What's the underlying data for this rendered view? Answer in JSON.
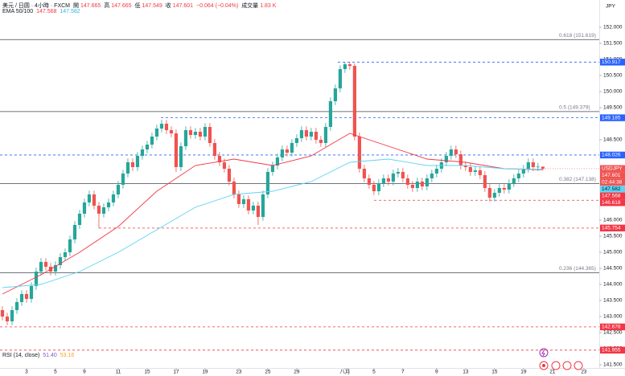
{
  "chart_data": {
    "type": "candlestick",
    "header": {
      "symbol": "美元 / 日圆 · 4小時 · FXCM",
      "ohlc_labels": [
        "開",
        "高",
        "低",
        "收"
      ],
      "change": {
        "value": -0.064,
        "label": "−0.064"
      },
      "change_pct": {
        "value": -0.04,
        "label": "(−0.04%)"
      },
      "volume_label": "成交量",
      "volume": {
        "value": 1.83,
        "label": "1.83 K"
      }
    },
    "currency": "JPY",
    "ticker": "USDJPY",
    "countdown": "02:44:38",
    "up_color": "#26a69a",
    "down_color": "#ef5350",
    "xlim": [
      -0.5,
      123.7
    ],
    "ylim": [
      141.45,
      152.85
    ],
    "xticks": [
      {
        "value": 5,
        "label": "3"
      },
      {
        "value": 11,
        "label": "5"
      },
      {
        "value": 17,
        "label": "9"
      },
      {
        "value": 24,
        "label": "11"
      },
      {
        "value": 30,
        "label": "15"
      },
      {
        "value": 36,
        "label": "17"
      },
      {
        "value": 42,
        "label": "19"
      },
      {
        "value": 49,
        "label": "23"
      },
      {
        "value": 55,
        "label": "25"
      },
      {
        "value": 61,
        "label": "29"
      },
      {
        "value": 71,
        "label": "八月"
      },
      {
        "value": 77,
        "label": "5"
      },
      {
        "value": 83,
        "label": "7"
      },
      {
        "value": 90,
        "label": "9"
      },
      {
        "value": 96,
        "label": "13"
      },
      {
        "value": 102,
        "label": "15"
      },
      {
        "value": 108,
        "label": "19"
      },
      {
        "value": 114,
        "label": "21"
      },
      {
        "value": 120.5,
        "label": "23"
      }
    ],
    "yticks": [
      {
        "value": 152,
        "label": "152.000"
      },
      {
        "value": 151.5,
        "label": "151.500"
      },
      {
        "value": 151,
        "label": "151.000"
      },
      {
        "value": 150.5,
        "label": "150.500"
      },
      {
        "value": 150,
        "label": "150.000"
      },
      {
        "value": 149.5,
        "label": "149.500"
      },
      {
        "value": 148.5,
        "label": "148.500"
      },
      {
        "value": 146,
        "label": "146.000"
      },
      {
        "value": 145.5,
        "label": "145.500"
      },
      {
        "value": 145,
        "label": "145.000"
      },
      {
        "value": 144.5,
        "label": "144.500"
      },
      {
        "value": 144,
        "label": "144.000"
      },
      {
        "value": 143.5,
        "label": "143.500"
      },
      {
        "value": 143,
        "label": "143.000"
      },
      {
        "value": 142.5,
        "label": "142.500"
      },
      {
        "value": 142,
        "label": "142.000"
      },
      {
        "value": 141.5,
        "label": "141.500"
      }
    ],
    "open": [
      143.2,
      143.0,
      142.85,
      143.2,
      143.45,
      143.7,
      143.55,
      143.95,
      144.4,
      144.7,
      144.55,
      144.4,
      144.6,
      144.85,
      145.0,
      145.4,
      145.85,
      146.2,
      146.55,
      146.8,
      146.45,
      146.2,
      146.4,
      146.55,
      146.8,
      147.1,
      147.45,
      147.8,
      147.65,
      148.0,
      148.2,
      148.35,
      148.6,
      148.85,
      149.0,
      148.8,
      148.7,
      147.65,
      148.3,
      148.8,
      148.65,
      148.75,
      148.6,
      148.9,
      148.4,
      148.0,
      147.8,
      147.6,
      147.2,
      146.8,
      146.5,
      146.65,
      146.3,
      146.45,
      146.1,
      146.8,
      147.5,
      147.7,
      147.95,
      148.2,
      148.1,
      148.4,
      148.55,
      148.8,
      148.6,
      148.75,
      148.5,
      148.4,
      148.9,
      149.7,
      150.1,
      150.7,
      150.85,
      150.8,
      148.6,
      147.6,
      147.3,
      147.1,
      146.9,
      147.15,
      147.3,
      147.2,
      147.45,
      147.5,
      147.3,
      147.1,
      147.0,
      147.2,
      147.05,
      147.3,
      147.45,
      147.6,
      147.8,
      148.0,
      148.2,
      148.05,
      147.7,
      147.65,
      147.5,
      147.55,
      147.4,
      147.0,
      146.7,
      146.85,
      147.0,
      146.95,
      147.15,
      147.3,
      147.45,
      147.6,
      147.8,
      147.65,
      147.665
    ],
    "high": [
      143.32,
      143.12,
      143.32,
      143.57,
      143.82,
      143.82,
      144.07,
      144.52,
      144.82,
      144.82,
      144.67,
      144.72,
      144.97,
      145.12,
      145.52,
      145.97,
      146.32,
      146.67,
      146.92,
      146.92,
      146.57,
      146.52,
      146.67,
      146.92,
      147.22,
      147.57,
      147.92,
      147.92,
      148.12,
      148.32,
      148.47,
      148.72,
      148.97,
      149.12,
      149.12,
      148.92,
      148.82,
      148.42,
      148.92,
      148.92,
      148.87,
      148.87,
      149.02,
      149.02,
      148.52,
      148.12,
      147.92,
      147.72,
      147.32,
      146.92,
      146.77,
      146.77,
      146.57,
      146.57,
      146.92,
      147.62,
      147.82,
      148.07,
      148.32,
      148.32,
      148.52,
      148.67,
      148.92,
      148.92,
      148.87,
      148.87,
      148.62,
      149.02,
      149.82,
      150.22,
      150.82,
      150.92,
      150.92,
      150.88,
      148.72,
      147.72,
      147.42,
      147.22,
      147.27,
      147.42,
      147.42,
      147.57,
      147.62,
      147.62,
      147.42,
      147.22,
      147.32,
      147.32,
      147.42,
      147.57,
      147.72,
      147.92,
      148.12,
      148.32,
      148.32,
      148.17,
      147.82,
      147.77,
      147.67,
      147.67,
      147.52,
      147.12,
      146.97,
      147.12,
      147.12,
      147.27,
      147.42,
      147.57,
      147.72,
      147.92,
      147.92,
      147.78,
      147.665
    ],
    "low": [
      142.88,
      142.73,
      142.73,
      143.08,
      143.33,
      143.43,
      143.43,
      143.83,
      144.28,
      144.43,
      144.28,
      144.28,
      144.48,
      144.73,
      144.88,
      145.28,
      145.73,
      146.08,
      146.43,
      146.33,
      145.75,
      146.08,
      146.28,
      146.43,
      146.68,
      146.98,
      147.33,
      147.53,
      147.53,
      147.88,
      148.08,
      148.23,
      148.48,
      148.73,
      148.68,
      148.58,
      147.5,
      147.53,
      148.18,
      148.53,
      148.53,
      148.48,
      148.48,
      148.28,
      147.88,
      147.68,
      147.48,
      147.08,
      146.68,
      146.38,
      146.38,
      146.18,
      146.18,
      145.85,
      145.98,
      146.68,
      147.38,
      147.58,
      147.83,
      147.98,
      147.98,
      148.28,
      148.43,
      148.48,
      148.48,
      148.38,
      148.28,
      148.28,
      148.78,
      149.58,
      149.98,
      150.58,
      150.68,
      148.48,
      147.48,
      147.18,
      146.98,
      146.78,
      146.78,
      147.03,
      147.08,
      147.08,
      147.33,
      147.18,
      146.98,
      146.88,
      146.88,
      146.93,
      146.93,
      147.18,
      147.33,
      147.48,
      147.68,
      147.88,
      147.93,
      147.58,
      147.53,
      147.38,
      147.38,
      147.28,
      146.88,
      146.58,
      146.58,
      146.73,
      146.83,
      146.83,
      147.03,
      147.18,
      147.33,
      147.48,
      147.53,
      147.53,
      147.549
    ],
    "close": [
      143.0,
      142.85,
      143.2,
      143.45,
      143.7,
      143.55,
      143.95,
      144.4,
      144.7,
      144.55,
      144.4,
      144.6,
      144.85,
      145.0,
      145.4,
      145.85,
      146.2,
      146.55,
      146.8,
      146.45,
      146.2,
      146.4,
      146.55,
      146.8,
      147.1,
      147.45,
      147.8,
      147.65,
      148.0,
      148.2,
      148.35,
      148.6,
      148.85,
      149.0,
      148.8,
      148.7,
      147.65,
      148.3,
      148.8,
      148.65,
      148.75,
      148.6,
      148.9,
      148.4,
      148.0,
      147.8,
      147.6,
      147.2,
      146.8,
      146.5,
      146.65,
      146.3,
      146.45,
      146.1,
      146.8,
      147.5,
      147.7,
      147.95,
      148.2,
      148.1,
      148.4,
      148.55,
      148.8,
      148.6,
      148.75,
      148.5,
      148.4,
      148.9,
      149.7,
      150.1,
      150.7,
      150.85,
      150.8,
      148.6,
      147.6,
      147.3,
      147.1,
      146.9,
      147.15,
      147.3,
      147.2,
      147.45,
      147.5,
      147.3,
      147.1,
      147.0,
      147.2,
      147.05,
      147.3,
      147.45,
      147.6,
      147.8,
      148.0,
      148.2,
      148.05,
      147.7,
      147.65,
      147.5,
      147.55,
      147.4,
      147.0,
      146.7,
      146.85,
      147.0,
      146.95,
      147.15,
      147.3,
      147.45,
      147.6,
      147.8,
      147.65,
      147.665,
      147.601
    ],
    "ema_label": "EMA 50/100",
    "ema": [
      {
        "color": "#f23645",
        "x": [
          0,
          8,
          16,
          24,
          32,
          40,
          48,
          56,
          64,
          72,
          80,
          88,
          96,
          104,
          112
        ],
        "values": [
          143.7,
          144.3,
          145.0,
          145.8,
          146.9,
          147.7,
          147.9,
          147.7,
          148.0,
          148.7,
          148.3,
          147.9,
          147.8,
          147.6,
          147.568
        ]
      },
      {
        "color": "#5fd3f3",
        "x": [
          0,
          8,
          16,
          24,
          32,
          40,
          48,
          56,
          64,
          72,
          80,
          88,
          96,
          104,
          112
        ],
        "values": [
          143.9,
          144.0,
          144.4,
          145.0,
          145.7,
          146.4,
          146.8,
          146.9,
          147.2,
          147.8,
          147.9,
          147.7,
          147.7,
          147.6,
          147.582
        ]
      }
    ],
    "fib_levels": [
      {
        "value": 151.619,
        "label": "0.618 (151.619)"
      },
      {
        "value": 149.379,
        "label": "0.5 (149.379)"
      },
      {
        "value": 147.138,
        "label": "0.382 (147.138)"
      },
      {
        "value": 144.365,
        "label": "0.236 (144.365)"
      }
    ],
    "levels": [
      {
        "value": 150.917,
        "color": "#2962ff"
      },
      {
        "value": 149.185,
        "color": "#2962ff"
      },
      {
        "value": 148.026,
        "color": "#2962ff"
      },
      {
        "value": 146.618,
        "color": "#f23645"
      },
      {
        "value": 145.754,
        "color": "#f23645"
      },
      {
        "value": 142.678,
        "color": "#f23645"
      },
      {
        "value": 141.955,
        "color": "#f23645"
      }
    ],
    "rsi_label": "RSI (14, close)",
    "rsi": [
      {
        "value": 51.4,
        "label": "51.40"
      },
      {
        "value": 53.16,
        "label": "53.16"
      }
    ]
  }
}
